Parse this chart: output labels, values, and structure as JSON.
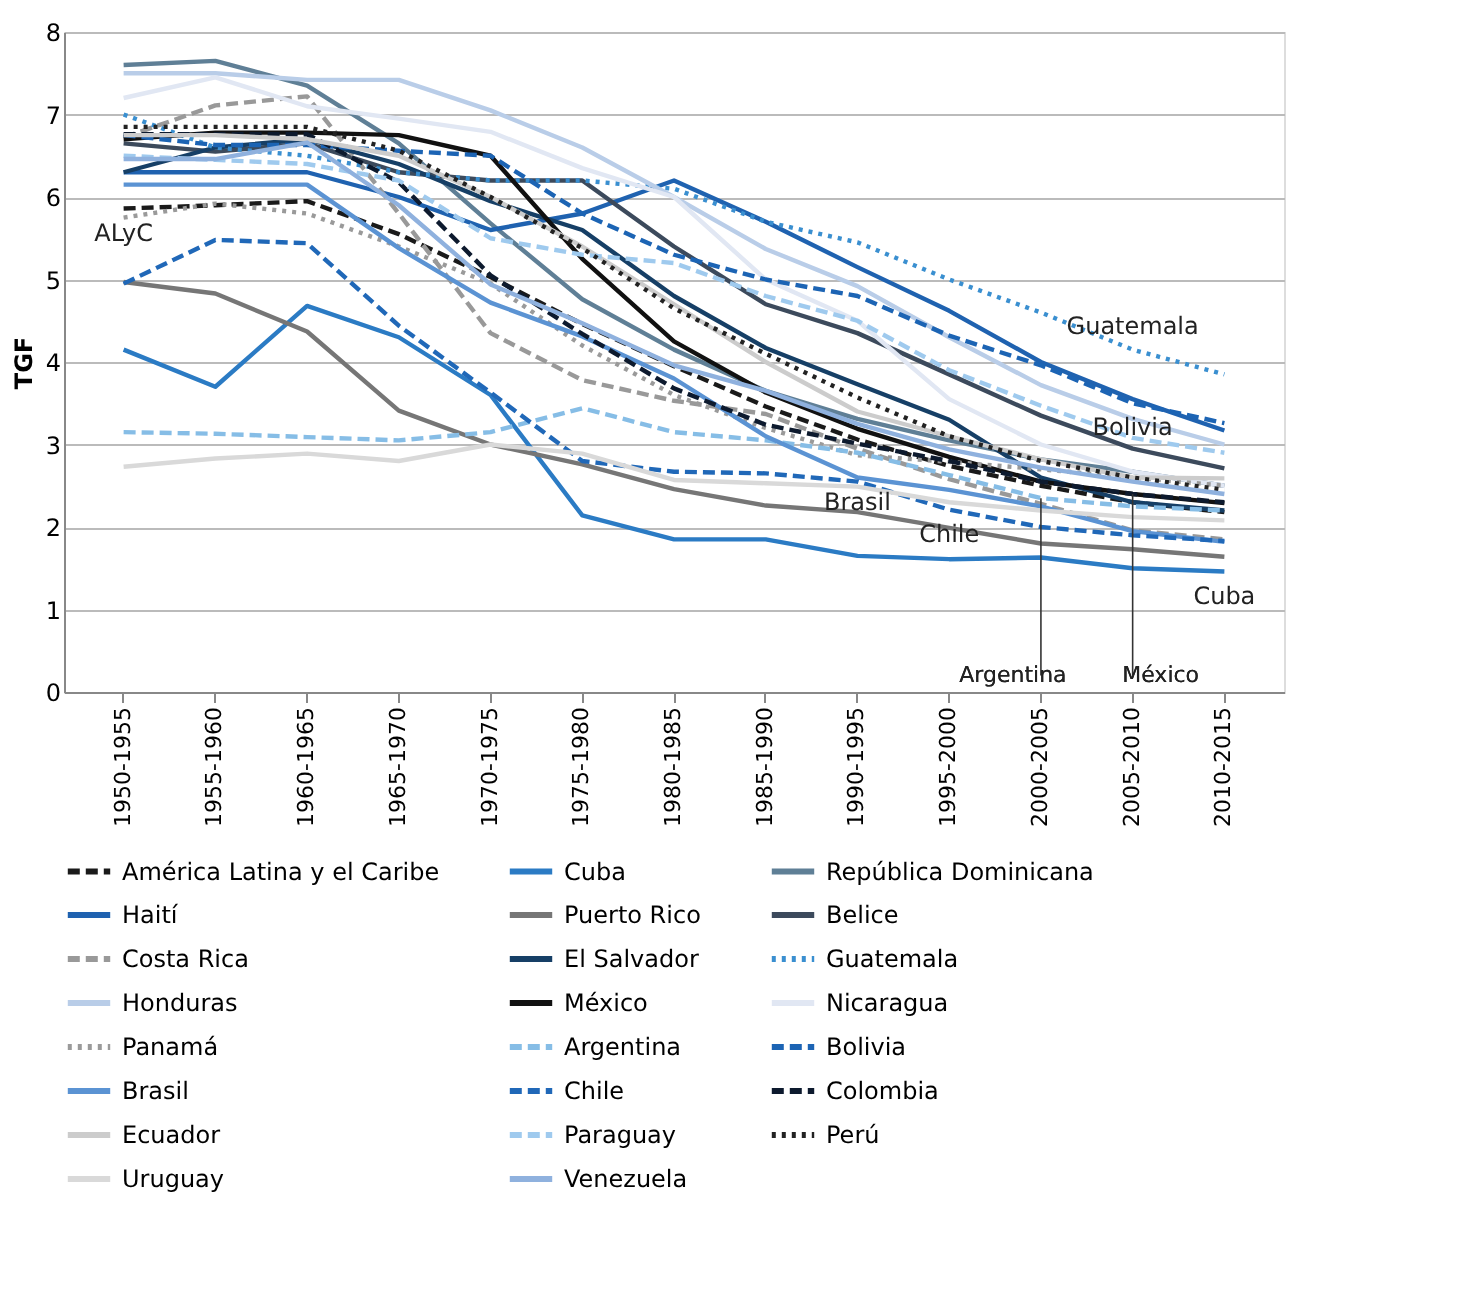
{
  "chart_data": {
    "type": "line",
    "ylabel": "TGF",
    "categories": [
      "1950-1955",
      "1955-1960",
      "1960-1965",
      "1965-1970",
      "1970-1975",
      "1975-1980",
      "1980-1985",
      "1985-1990",
      "1990-1995",
      "1995-2000",
      "2000-2005",
      "2005-2010",
      "2010-2015"
    ],
    "ylim": [
      0,
      8
    ],
    "yticks": [
      0,
      1,
      2,
      3,
      4,
      5,
      6,
      7,
      8
    ],
    "grid": "y",
    "legend": "bottom",
    "marker": "none",
    "series": [
      {
        "name": "América Latina y el Caribe",
        "color": "#1a1a1a",
        "line_style": "dashed",
        "values": [
          5.86,
          5.9,
          5.95,
          5.55,
          5.03,
          4.46,
          3.95,
          3.46,
          3.06,
          2.74,
          2.5,
          2.3,
          2.18
        ]
      },
      {
        "name": "Cuba",
        "color": "#2b7bc4",
        "line_style": "solid",
        "values": [
          4.15,
          3.7,
          4.68,
          4.3,
          3.6,
          2.14,
          1.85,
          1.85,
          1.65,
          1.61,
          1.63,
          1.5,
          1.46
        ]
      },
      {
        "name": "República Dominicana",
        "color": "#5f7f96",
        "line_style": "solid",
        "values": [
          7.6,
          7.65,
          7.35,
          6.65,
          5.68,
          4.76,
          4.15,
          3.65,
          3.31,
          3.05,
          2.82,
          2.67,
          2.5
        ]
      },
      {
        "name": "Haití",
        "color": "#1f62b0",
        "line_style": "solid",
        "values": [
          6.3,
          6.3,
          6.3,
          6.0,
          5.6,
          5.8,
          6.2,
          5.7,
          5.15,
          4.62,
          4.0,
          3.55,
          3.17
        ]
      },
      {
        "name": "Puerto Rico",
        "color": "#767676",
        "line_style": "solid",
        "values": [
          4.97,
          4.83,
          4.37,
          3.41,
          3.0,
          2.76,
          2.46,
          2.26,
          2.18,
          1.99,
          1.8,
          1.73,
          1.64
        ]
      },
      {
        "name": "Belice",
        "color": "#3c4a5c",
        "line_style": "solid",
        "values": [
          6.65,
          6.55,
          6.65,
          6.3,
          6.2,
          6.2,
          5.4,
          4.7,
          4.35,
          3.85,
          3.35,
          2.95,
          2.71
        ]
      },
      {
        "name": "Costa Rica",
        "color": "#999999",
        "line_style": "dashed",
        "values": [
          6.72,
          7.11,
          7.22,
          5.8,
          4.35,
          3.78,
          3.53,
          3.37,
          2.95,
          2.58,
          2.28,
          1.96,
          1.85
        ]
      },
      {
        "name": "El Salvador",
        "color": "#163f66",
        "line_style": "solid",
        "values": [
          6.3,
          6.6,
          6.7,
          6.4,
          5.95,
          5.6,
          4.8,
          4.17,
          3.73,
          3.3,
          2.6,
          2.3,
          2.2
        ]
      },
      {
        "name": "Guatemala",
        "color": "#3a8fd0",
        "line_style": "dotted",
        "values": [
          7.0,
          6.6,
          6.5,
          6.3,
          6.2,
          6.2,
          6.1,
          5.7,
          5.45,
          5.0,
          4.6,
          4.15,
          3.85
        ]
      },
      {
        "name": "Honduras",
        "color": "#b9cde8",
        "line_style": "solid",
        "values": [
          7.5,
          7.5,
          7.42,
          7.42,
          7.05,
          6.6,
          6.0,
          5.37,
          4.92,
          4.3,
          3.72,
          3.31,
          3.0
        ]
      },
      {
        "name": "México",
        "color": "#111111",
        "line_style": "solid",
        "values": [
          6.7,
          6.78,
          6.78,
          6.75,
          6.5,
          5.25,
          4.25,
          3.63,
          3.19,
          2.85,
          2.55,
          2.4,
          2.29
        ]
      },
      {
        "name": "Nicaragua",
        "color": "#e1e7f3",
        "line_style": "solid",
        "values": [
          7.2,
          7.45,
          7.1,
          6.95,
          6.79,
          6.35,
          6.0,
          5.0,
          4.5,
          3.55,
          3.0,
          2.67,
          2.5
        ]
      },
      {
        "name": "Panamá",
        "color": "#9a9a9a",
        "line_style": "dotted",
        "values": [
          5.75,
          5.92,
          5.8,
          5.4,
          4.95,
          4.2,
          3.6,
          3.2,
          2.87,
          2.79,
          2.7,
          2.6,
          2.5
        ]
      },
      {
        "name": "Argentina",
        "color": "#86bde6",
        "line_style": "dashed",
        "values": [
          3.15,
          3.13,
          3.09,
          3.05,
          3.15,
          3.44,
          3.15,
          3.05,
          2.9,
          2.63,
          2.35,
          2.25,
          2.2
        ]
      },
      {
        "name": "Bolivia",
        "color": "#1c64b4",
        "line_style": "dashed",
        "values": [
          6.75,
          6.63,
          6.63,
          6.56,
          6.5,
          5.8,
          5.3,
          5.0,
          4.8,
          4.32,
          3.96,
          3.5,
          3.26
        ]
      },
      {
        "name": "Brasil",
        "color": "#5b93d3",
        "line_style": "solid",
        "values": [
          6.15,
          6.15,
          6.15,
          5.38,
          4.72,
          4.31,
          3.8,
          3.1,
          2.6,
          2.45,
          2.25,
          1.95,
          1.82
        ]
      },
      {
        "name": "Chile",
        "color": "#2068b8",
        "line_style": "dashed",
        "values": [
          4.95,
          5.48,
          5.44,
          4.44,
          3.63,
          2.8,
          2.67,
          2.65,
          2.55,
          2.21,
          2.0,
          1.9,
          1.83
        ]
      },
      {
        "name": "Colombia",
        "color": "#0d1a2e",
        "line_style": "dashed",
        "values": [
          6.76,
          6.76,
          6.76,
          6.18,
          5.05,
          4.34,
          3.68,
          3.24,
          3.01,
          2.8,
          2.55,
          2.4,
          2.3
        ]
      },
      {
        "name": "Ecuador",
        "color": "#cccccc",
        "line_style": "solid",
        "values": [
          6.75,
          6.75,
          6.7,
          6.5,
          6.0,
          5.4,
          4.7,
          4.0,
          3.4,
          3.1,
          2.82,
          2.6,
          2.59
        ]
      },
      {
        "name": "Paraguay",
        "color": "#9fcaee",
        "line_style": "dashed",
        "values": [
          6.5,
          6.45,
          6.4,
          6.2,
          5.5,
          5.3,
          5.2,
          4.8,
          4.5,
          3.9,
          3.47,
          3.08,
          2.9
        ]
      },
      {
        "name": "Perú",
        "color": "#222222",
        "line_style": "dotted",
        "values": [
          6.85,
          6.85,
          6.85,
          6.56,
          6.0,
          5.38,
          4.65,
          4.1,
          3.57,
          3.1,
          2.8,
          2.6,
          2.45
        ]
      },
      {
        "name": "Uruguay",
        "color": "#d9d9d9",
        "line_style": "solid",
        "values": [
          2.73,
          2.83,
          2.89,
          2.8,
          3.0,
          2.89,
          2.57,
          2.53,
          2.49,
          2.3,
          2.2,
          2.12,
          2.08
        ]
      },
      {
        "name": "Venezuela",
        "color": "#8fb1de",
        "line_style": "solid",
        "values": [
          6.46,
          6.46,
          6.66,
          5.9,
          4.94,
          4.47,
          3.96,
          3.65,
          3.25,
          2.94,
          2.72,
          2.55,
          2.4
        ]
      }
    ],
    "annotations": [
      {
        "text": "ALyC",
        "x": "1950-1955",
        "y": 5.86
      },
      {
        "text": "Guatemala",
        "x": "2005-2010",
        "y": 4.15
      },
      {
        "text": "Bolivia",
        "x": "2005-2010",
        "y": 3.5
      },
      {
        "text": "Brasil",
        "x": "1990-1995",
        "y": 2.6
      },
      {
        "text": "Chile",
        "x": "1995-2000",
        "y": 2.21
      },
      {
        "text": "Cuba",
        "x": "2010-2015",
        "y": 1.46
      },
      {
        "text": "Argentina",
        "x": "2000-2005",
        "y": 2.35
      },
      {
        "text": "México",
        "x": "2005-2010",
        "y": 2.4
      }
    ]
  }
}
